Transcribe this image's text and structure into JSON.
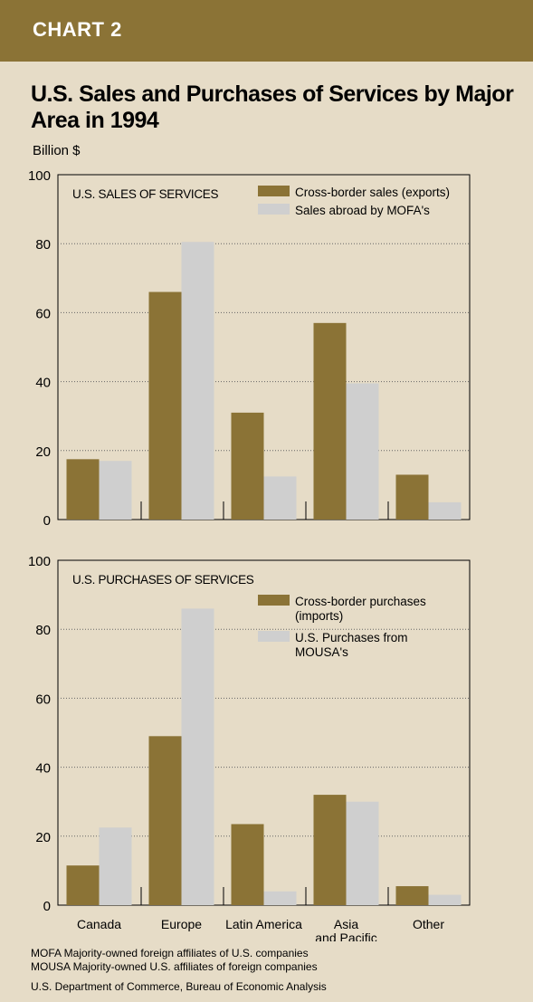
{
  "header": {
    "label": "CHART 2"
  },
  "title": "U.S. Sales and Purchases of Services by Major Area in 1994",
  "unit": "Billion $",
  "colors": {
    "series1": "#8b7336",
    "series2": "#cfcfcf",
    "background": "#e6dcc7",
    "grid": "#666666"
  },
  "chart_data": [
    {
      "type": "bar",
      "title": "U.S. SALES  OF SERVICES",
      "categories": [
        "Canada",
        "Europe",
        "Latin America",
        "Asia and Pacific",
        "Other"
      ],
      "series": [
        {
          "name": "Cross-border sales (exports)",
          "values": [
            17.5,
            66,
            31,
            57,
            13
          ]
        },
        {
          "name": "Sales abroad by MOFA's",
          "values": [
            17,
            80.5,
            12.5,
            39.5,
            5
          ]
        }
      ],
      "ylim": [
        0,
        100
      ],
      "yticks": [
        0,
        20,
        40,
        60,
        80,
        100
      ],
      "grid": true,
      "legend_position": "top-right"
    },
    {
      "type": "bar",
      "title": "U.S. PURCHASES  OF SERVICES",
      "categories": [
        "Canada",
        "Europe",
        "Latin America",
        "Asia and Pacific",
        "Other"
      ],
      "series": [
        {
          "name": "Cross-border purchases (imports)",
          "values": [
            11.5,
            49,
            23.5,
            32,
            5.5
          ]
        },
        {
          "name": "U.S. Purchases from MOUSA's",
          "values": [
            22.5,
            86,
            4,
            30,
            3
          ]
        }
      ],
      "ylim": [
        0,
        100
      ],
      "yticks": [
        0,
        20,
        40,
        60,
        80,
        100
      ],
      "grid": true,
      "legend_position": "top-right"
    }
  ],
  "x_labels": [
    [
      "Canada"
    ],
    [
      "Europe"
    ],
    [
      "Latin  America"
    ],
    [
      "Asia",
      "and Pacific"
    ],
    [
      "Other"
    ]
  ],
  "legend_lines": [
    [
      [
        "Cross-border sales (exports)"
      ],
      [
        "Sales abroad by MOFA's"
      ]
    ],
    [
      [
        "Cross-border purchases",
        "(imports)"
      ],
      [
        "U.S. Purchases from",
        "MOUSA's"
      ]
    ]
  ],
  "footnotes": {
    "mofa": "MOFA  Majority-owned foreign affiliates of U.S. companies",
    "mousa": "MOUSA  Majority-owned U.S. affiliates of foreign companies",
    "source": "U.S. Department of Commerce, Bureau of Economic Analysis"
  }
}
